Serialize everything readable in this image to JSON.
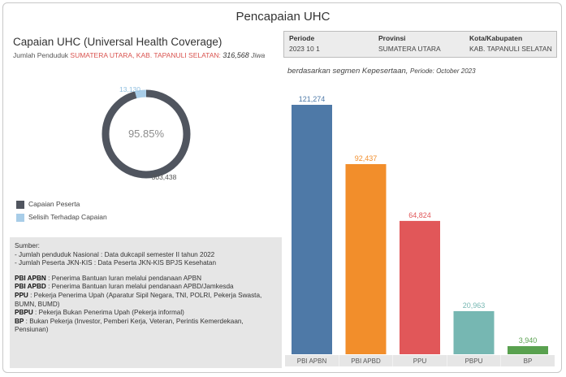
{
  "dashboard_title": "Pencapaian UHC",
  "left_panel": {
    "title": "Capaian UHC (Universal Health Coverage)",
    "population_prefix": "Jumlah Penduduk",
    "population_region": "SUMATERA UTARA, KAB. TAPANULI SELATAN:",
    "population_value": "316,568",
    "population_unit": "Jiwa"
  },
  "filters": {
    "periode_label": "Periode",
    "periode_value": "2023 10 1",
    "provinsi_label": "Provinsi",
    "provinsi_value": "SUMATERA UTARA",
    "kota_label": "Kota/Kabupaten",
    "kota_value": "KAB. TAPANULI SELATAN"
  },
  "segment_title": "berdasarkan segmen Kepesertaan,",
  "segment_period": "Periode: October 2023",
  "legend": {
    "peserta_label": "Capaian Peserta",
    "selisih_label": "Selisih Terhadap Capaian"
  },
  "source": {
    "heading": "Sumber:",
    "line1": "- Jumlah penduduk Nasional : Data dukcapil semester II tahun 2022",
    "line2": "- Jumlah Peserta JKN-KIS : Data Peserta JKN-KIS BPJS Kesehatan",
    "defs": [
      {
        "term": "PBI APBN",
        "desc": " : Penerima Bantuan Iuran melalui pendanaan APBN"
      },
      {
        "term": "PBI APBD",
        "desc": " : Penerima Bantuan Iuran melalui pendanaan APBD/Jamkesda"
      },
      {
        "term": "PPU",
        "desc": " : Pekerja Penerima Upah (Aparatur Sipil Negara, TNI, POLRI, Pekerja Swasta, BUMN, BUMD)"
      },
      {
        "term": "PBPU",
        "desc": " : Pekerja Bukan Penerima Upah (Pekerja informal)"
      },
      {
        "term": "BP",
        "desc": " : Bukan Pekerja (Investor, Pemberi Kerja, Veteran, Perintis Kemerdekaan, Pensiunan)"
      }
    ]
  },
  "colors": {
    "peserta": "#50555f",
    "selisih": "#a8cde8"
  },
  "chart_data": [
    {
      "type": "pie",
      "center_label": "95.85%",
      "slices": [
        {
          "name": "Capaian Peserta",
          "value": 303438,
          "label": "303,438",
          "color": "#50555f"
        },
        {
          "name": "Selisih Terhadap Capaian",
          "value": 13130,
          "label": "13,130",
          "color": "#a8cde8"
        }
      ]
    },
    {
      "type": "bar",
      "categories": [
        "PBI APBN",
        "PBI APBD",
        "PPU",
        "PBPU",
        "BP"
      ],
      "values": [
        121274,
        92437,
        64824,
        20963,
        3940
      ],
      "value_labels": [
        "121,274",
        "92,437",
        "64,824",
        "20,963",
        "3,940"
      ],
      "colors": [
        "#4e79a7",
        "#f28e2b",
        "#e15759",
        "#76b7b2",
        "#59a14f"
      ],
      "ylim": [
        0,
        121274
      ]
    }
  ]
}
